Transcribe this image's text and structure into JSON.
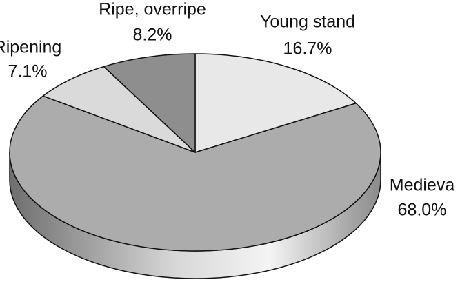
{
  "chart_data": {
    "type": "pie",
    "categories": [
      "Young stand",
      "Medieva",
      "Ripening",
      "Ripe, overripe"
    ],
    "values": [
      16.7,
      68.0,
      7.1,
      8.2
    ],
    "value_labels": [
      "16.7%",
      "68.0%",
      "7.1%",
      "8.2%"
    ],
    "colors": [
      "#e8e8e8",
      "#acacac",
      "#dadada",
      "#8e8e8e"
    ]
  }
}
